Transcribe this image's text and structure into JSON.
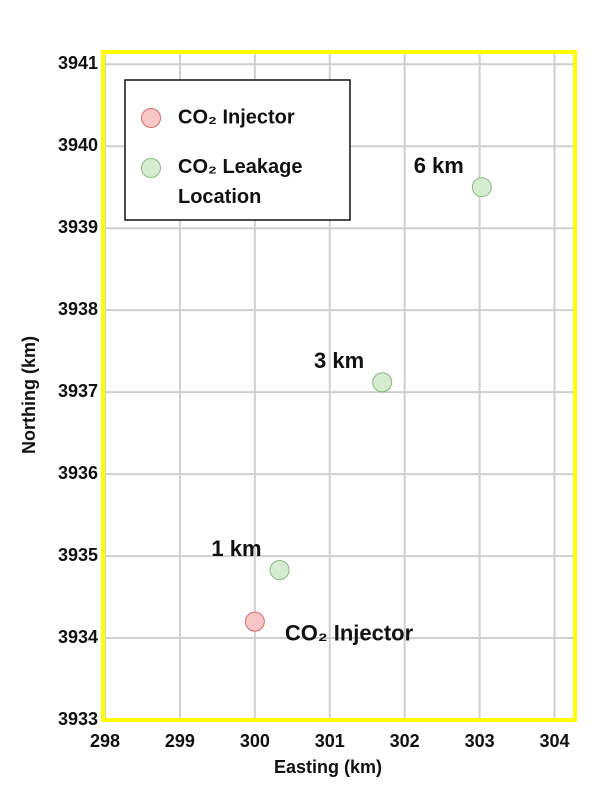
{
  "chart_data": {
    "type": "scatter",
    "xlabel": "Easting (km)",
    "ylabel": "Northing (km)",
    "xlim": [
      298,
      304.3
    ],
    "ylim": [
      3933,
      3941.15
    ],
    "xticks": [
      298,
      299,
      300,
      301,
      302,
      303,
      304
    ],
    "yticks": [
      3933,
      3934,
      3935,
      3936,
      3937,
      3938,
      3939,
      3940,
      3941
    ],
    "grid": true,
    "legend": "upper left",
    "frame_color": "#ffff00",
    "series": [
      {
        "name": "CO₂ Injector",
        "color": "#f7c6c6",
        "edge_color": "#d46a6a",
        "x": [
          300.0
        ],
        "values": [
          3934.2
        ],
        "value_labels": [
          "CO₂ Injector"
        ]
      },
      {
        "name": "CO₂ Leakage Location",
        "color": "#d6ecd1",
        "edge_color": "#86b882",
        "x": [
          300.33,
          301.7,
          303.03
        ],
        "values": [
          3934.83,
          3937.12,
          3939.5
        ],
        "value_labels": [
          "1 km",
          "3 km",
          "6 km"
        ]
      }
    ]
  }
}
